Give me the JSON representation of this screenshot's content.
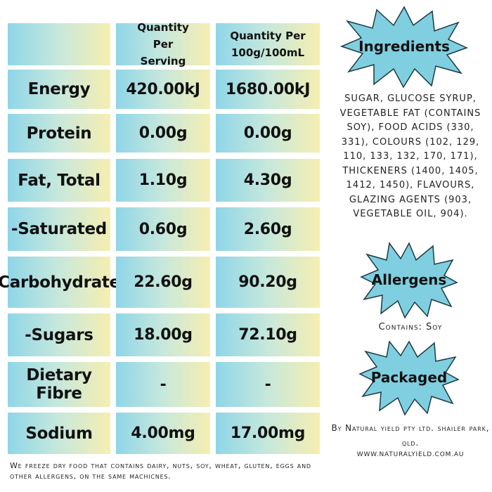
{
  "table": {
    "header": {
      "col1": "Quantity Per Serving",
      "col2": "Quantity Per 100g/100mL"
    },
    "rows": [
      {
        "label": "Energy",
        "serving": "420.00kJ",
        "per100": "1680.00kJ"
      },
      {
        "label": "Protein",
        "serving": "0.00g",
        "per100": "0.00g"
      },
      {
        "label": "Fat, Total",
        "serving": "1.10g",
        "per100": "4.30g"
      },
      {
        "label": "-Saturated",
        "serving": "0.60g",
        "per100": "2.60g"
      },
      {
        "label": "Carbohydrate",
        "serving": "22.60g",
        "per100": "90.20g"
      },
      {
        "label": "-Sugars",
        "serving": "18.00g",
        "per100": "72.10g"
      },
      {
        "label": "Dietary Fibre",
        "serving": "-",
        "per100": "-"
      },
      {
        "label": "Sodium",
        "serving": "4.00mg",
        "per100": "17.00mg"
      }
    ]
  },
  "ingredients": {
    "title": "Ingredients",
    "text": "SUGAR, GLUCOSE SYRUP, VEGETABLE FAT (CONTAINS SOY), FOOD ACIDS (330, 331), COLOURS (102, 129, 110, 133, 132, 170, 171), THICKENERS (1400, 1405, 1412, 1450), FLAVOURS, GLAZING AGENTS (903, VEGETABLE OIL, 904)."
  },
  "allergens": {
    "title": "Allergens",
    "text": "Contains: Soy"
  },
  "packaged": {
    "title": "Packaged",
    "text": "By Natural yield pty ltd.  shailer park, qld.",
    "website": "www.naturalyield.com.au"
  },
  "footer": {
    "text": "We freeze dry food that contains dairy, nuts, soy, wheat, gluten, eggs and other allergens, on the same machicnes."
  },
  "colors": {
    "cell_left": "#8fd6e8",
    "cell_right": "#f6eeb0",
    "burst_fill": "#7fcfe0"
  }
}
